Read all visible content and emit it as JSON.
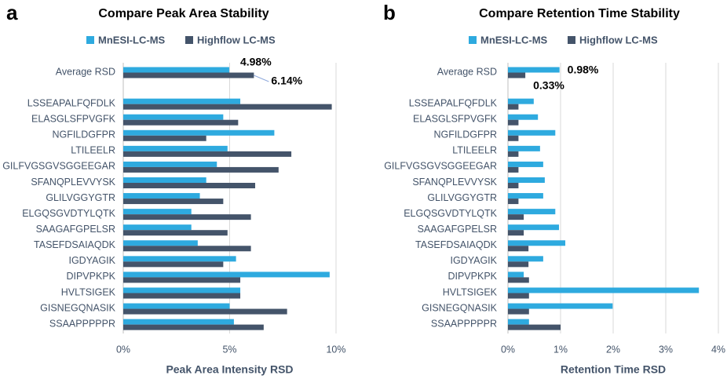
{
  "chart_data": [
    {
      "type": "bar",
      "orientation": "horizontal",
      "panel_label": "a",
      "title": "Compare Peak Area Stability",
      "x_label": "Peak Area Intensity RSD",
      "categories": [
        "Average RSD",
        null,
        "LSSEAPALFQFDLK",
        "ELASGLSFPVGFK",
        "NGFILDGFPR",
        "LTILEELR",
        "GILFVGSGVSGGEEGAR",
        "SFANQPLEVVYSK",
        "GLILVGGYGTR",
        "ELGQSGVDTYLQTK",
        "SAAGAFGPELSR",
        "TASEFDSAIAQDK",
        "IGDYAGIK",
        "DIPVPKPK",
        "HVLTSIGEK",
        "GISNEGQNASIK",
        "SSAAPPPPPR"
      ],
      "series": [
        {
          "name": "MnESI-LC-MS",
          "color": "#2eaadf",
          "values": [
            4.98,
            null,
            5.5,
            4.7,
            7.1,
            4.9,
            4.4,
            3.9,
            3.6,
            3.2,
            3.2,
            3.5,
            5.3,
            9.7,
            5.5,
            5.0,
            5.2
          ],
          "value_labels": [
            "4.98%",
            null,
            null,
            null,
            null,
            null,
            null,
            null,
            null,
            null,
            null,
            null,
            null,
            null,
            null,
            null,
            null
          ]
        },
        {
          "name": "Highflow LC-MS",
          "color": "#44546a",
          "values": [
            6.14,
            null,
            9.8,
            5.4,
            3.9,
            7.9,
            7.3,
            6.2,
            4.7,
            6.0,
            4.9,
            6.0,
            4.7,
            5.5,
            5.5,
            7.7,
            6.6
          ],
          "value_labels": [
            "6.14%",
            null,
            null,
            null,
            null,
            null,
            null,
            null,
            null,
            null,
            null,
            null,
            null,
            null,
            null,
            null,
            null
          ]
        }
      ],
      "xlim": [
        0,
        10
      ],
      "xticks": [
        {
          "value": 0,
          "label": "0%"
        },
        {
          "value": 5,
          "label": "5%"
        },
        {
          "value": 10,
          "label": "10%"
        }
      ],
      "grid": true
    },
    {
      "type": "bar",
      "orientation": "horizontal",
      "panel_label": "b",
      "title": "Compare Retention Time Stability",
      "x_label": "Retention Time RSD",
      "categories": [
        "Average RSD",
        null,
        "LSSEAPALFQFDLK",
        "ELASGLSFPVGFK",
        "NGFILDGFPR",
        "LTILEELR",
        "GILFVGSGVSGGEEGAR",
        "SFANQPLEVVYSK",
        "GLILVGGYGTR",
        "ELGQSGVDTYLQTK",
        "SAAGAFGPELSR",
        "TASEFDSAIAQDK",
        "IGDYAGIK",
        "DIPVPKPK",
        "HVLTSIGEK",
        "GISNEGQNASIK",
        "SSAAPPPPPR"
      ],
      "series": [
        {
          "name": "MnESI-LC-MS",
          "color": "#2eaadf",
          "values": [
            0.98,
            null,
            0.49,
            0.57,
            0.9,
            0.61,
            0.67,
            0.7,
            0.67,
            0.9,
            0.97,
            1.09,
            0.67,
            0.3,
            3.63,
            1.99,
            0.4
          ],
          "value_labels": [
            "0.98%",
            null,
            null,
            null,
            null,
            null,
            null,
            null,
            null,
            null,
            null,
            null,
            null,
            null,
            null,
            null,
            null
          ]
        },
        {
          "name": "Highflow LC-MS",
          "color": "#44546a",
          "values": [
            0.33,
            null,
            0.2,
            0.2,
            0.2,
            0.2,
            0.2,
            0.2,
            0.2,
            0.3,
            0.3,
            0.39,
            0.39,
            0.4,
            0.4,
            0.4,
            1.0
          ],
          "value_labels": [
            "0.33%",
            null,
            null,
            null,
            null,
            null,
            null,
            null,
            null,
            null,
            null,
            null,
            null,
            null,
            null,
            null,
            null
          ]
        }
      ],
      "xlim": [
        0,
        4
      ],
      "xticks": [
        {
          "value": 0,
          "label": "0%"
        },
        {
          "value": 1,
          "label": "1%"
        },
        {
          "value": 2,
          "label": "2%"
        },
        {
          "value": 3,
          "label": "3%"
        },
        {
          "value": 4,
          "label": "4%"
        }
      ],
      "grid": true
    }
  ]
}
